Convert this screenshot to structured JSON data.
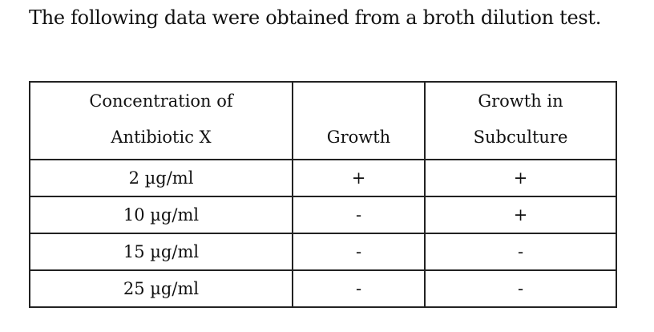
{
  "title": "The following data were obtained from a broth dilution test.",
  "table": {
    "header": [
      [
        "Concentration of",
        "Antibiotic X"
      ],
      [
        "Growth"
      ],
      [
        "Growth in",
        "Subculture"
      ]
    ],
    "rows": [
      [
        "2 µg/ml",
        "+",
        "+"
      ],
      [
        "10 µg/ml",
        "-",
        "+"
      ],
      [
        "15 µg/ml",
        "-",
        "-"
      ],
      [
        "25 µg/ml",
        "-",
        "-"
      ]
    ]
  }
}
